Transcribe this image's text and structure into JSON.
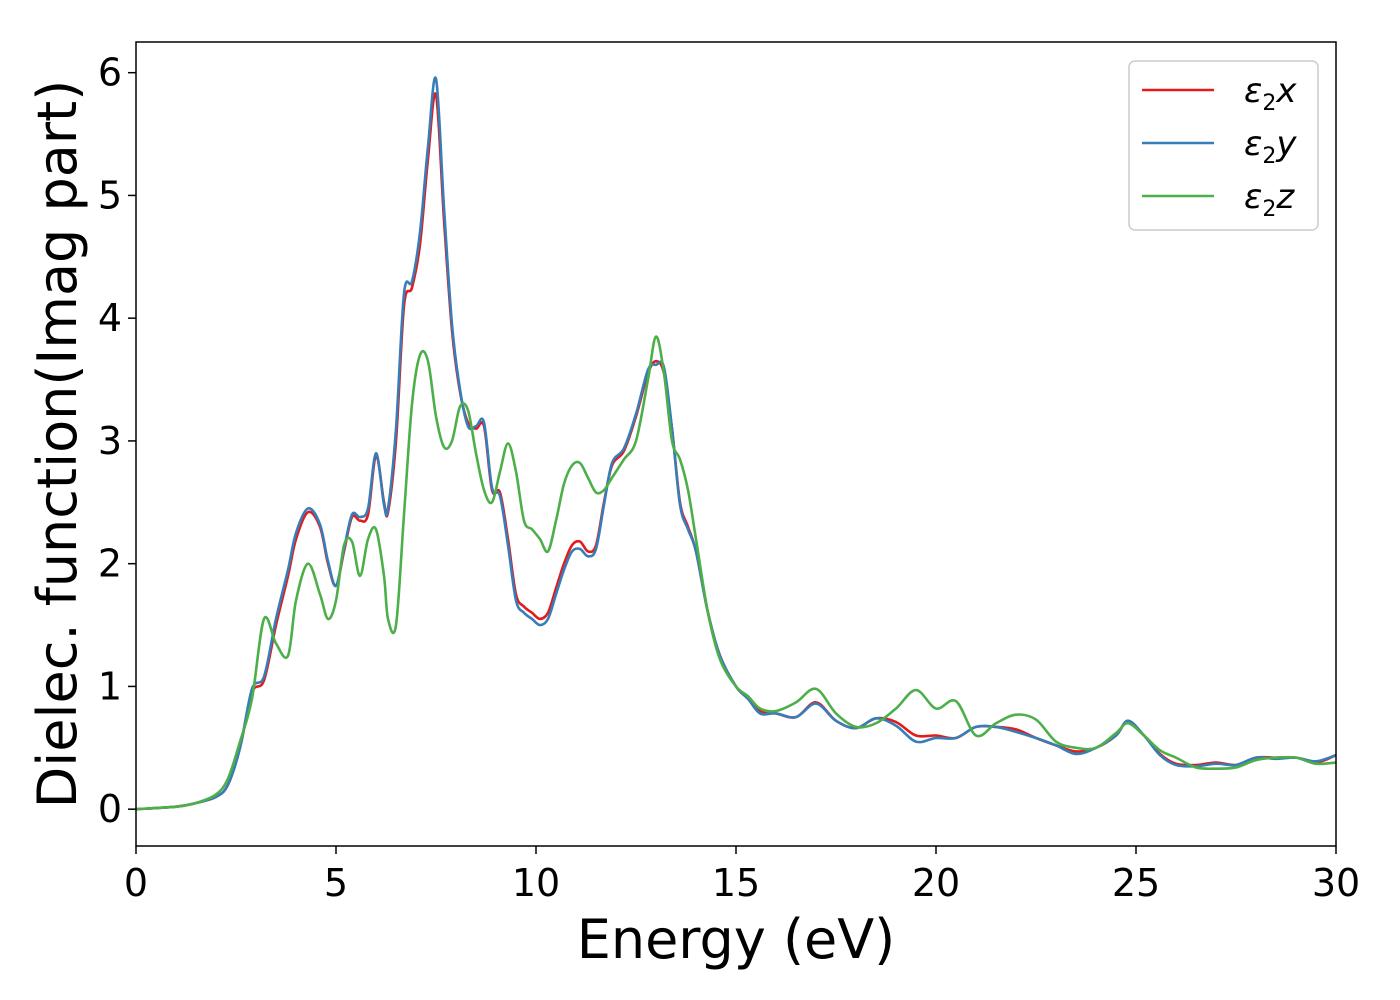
{
  "chart_data": {
    "type": "line",
    "title": "",
    "xlabel": "Energy (eV)",
    "ylabel": "Dielec. function(Imag part)",
    "xlim": [
      0,
      30
    ],
    "ylim": [
      -0.3,
      6.25
    ],
    "xticks": [
      0,
      5,
      10,
      15,
      20,
      25,
      30
    ],
    "yticks": [
      0,
      1,
      2,
      3,
      4,
      5,
      6
    ],
    "grid": false,
    "legend_position": "top-right",
    "series": [
      {
        "name": "ε₂x",
        "legend_main": "ε",
        "legend_sub": "2",
        "legend_axis": "x",
        "color": "#e41a1c",
        "x": [
          0,
          1,
          1.5,
          2,
          2.3,
          2.6,
          2.9,
          3.2,
          3.5,
          3.8,
          4.0,
          4.3,
          4.6,
          4.8,
          5.0,
          5.2,
          5.4,
          5.6,
          5.8,
          6.0,
          6.2,
          6.3,
          6.5,
          6.7,
          6.9,
          7.1,
          7.3,
          7.5,
          7.7,
          7.9,
          8.1,
          8.3,
          8.5,
          8.7,
          8.9,
          9.1,
          9.3,
          9.5,
          9.7,
          9.9,
          10.1,
          10.3,
          10.5,
          10.7,
          10.9,
          11.1,
          11.3,
          11.5,
          11.7,
          11.9,
          12.2,
          12.5,
          12.8,
          13.0,
          13.2,
          13.4,
          13.6,
          13.8,
          14.0,
          14.3,
          14.6,
          15.0,
          15.3,
          15.6,
          16.0,
          16.5,
          17.0,
          17.5,
          18.0,
          18.5,
          19.0,
          19.5,
          20.0,
          20.5,
          21.0,
          21.5,
          22.0,
          22.5,
          23.0,
          23.5,
          24.0,
          24.5,
          24.8,
          25.2,
          25.6,
          26.0,
          26.5,
          27.0,
          27.5,
          28.0,
          28.5,
          29.0,
          29.5,
          30.0
        ],
        "y": [
          0,
          0.02,
          0.05,
          0.1,
          0.2,
          0.5,
          0.95,
          1.05,
          1.5,
          1.9,
          2.2,
          2.42,
          2.3,
          2.0,
          1.82,
          2.1,
          2.38,
          2.35,
          2.4,
          2.88,
          2.5,
          2.42,
          3.0,
          4.1,
          4.25,
          4.6,
          5.3,
          5.82,
          4.8,
          3.9,
          3.4,
          3.15,
          3.1,
          3.12,
          2.6,
          2.58,
          2.2,
          1.75,
          1.65,
          1.6,
          1.55,
          1.6,
          1.8,
          2.0,
          2.15,
          2.18,
          2.1,
          2.15,
          2.5,
          2.8,
          2.92,
          3.2,
          3.55,
          3.65,
          3.55,
          3.1,
          2.5,
          2.3,
          2.1,
          1.6,
          1.25,
          1.0,
          0.9,
          0.8,
          0.78,
          0.75,
          0.87,
          0.72,
          0.66,
          0.74,
          0.71,
          0.6,
          0.6,
          0.58,
          0.67,
          0.67,
          0.65,
          0.58,
          0.52,
          0.47,
          0.5,
          0.6,
          0.72,
          0.6,
          0.45,
          0.37,
          0.36,
          0.38,
          0.36,
          0.42,
          0.42,
          0.42,
          0.38,
          0.44
        ]
      },
      {
        "name": "ε₂y",
        "legend_main": "ε",
        "legend_sub": "2",
        "legend_axis": "y",
        "color": "#377eb8",
        "x": [
          0,
          1,
          1.5,
          2,
          2.3,
          2.6,
          2.9,
          3.2,
          3.5,
          3.8,
          4.0,
          4.3,
          4.6,
          4.8,
          5.0,
          5.2,
          5.4,
          5.6,
          5.8,
          6.0,
          6.2,
          6.3,
          6.5,
          6.7,
          6.9,
          7.1,
          7.3,
          7.5,
          7.7,
          7.9,
          8.1,
          8.3,
          8.5,
          8.7,
          8.9,
          9.1,
          9.3,
          9.5,
          9.7,
          9.9,
          10.1,
          10.3,
          10.5,
          10.7,
          10.9,
          11.1,
          11.3,
          11.5,
          11.7,
          11.9,
          12.2,
          12.5,
          12.8,
          13.0,
          13.2,
          13.4,
          13.6,
          13.8,
          14.0,
          14.3,
          14.6,
          15.0,
          15.3,
          15.6,
          16.0,
          16.5,
          17.0,
          17.5,
          18.0,
          18.5,
          19.0,
          19.5,
          20.0,
          20.5,
          21.0,
          21.5,
          22.0,
          22.5,
          23.0,
          23.5,
          24.0,
          24.5,
          24.8,
          25.2,
          25.6,
          26.0,
          26.5,
          27.0,
          27.5,
          28.0,
          28.5,
          29.0,
          29.5,
          30.0
        ],
        "y": [
          0,
          0.02,
          0.05,
          0.1,
          0.2,
          0.5,
          0.98,
          1.08,
          1.55,
          1.95,
          2.25,
          2.45,
          2.32,
          2.02,
          1.82,
          2.12,
          2.4,
          2.38,
          2.45,
          2.9,
          2.48,
          2.45,
          3.1,
          4.2,
          4.3,
          4.7,
          5.4,
          5.95,
          4.9,
          3.95,
          3.42,
          3.12,
          3.12,
          3.15,
          2.62,
          2.55,
          2.15,
          1.7,
          1.6,
          1.55,
          1.5,
          1.55,
          1.75,
          1.95,
          2.1,
          2.12,
          2.06,
          2.12,
          2.48,
          2.82,
          2.94,
          3.22,
          3.58,
          3.62,
          3.6,
          3.1,
          2.48,
          2.28,
          2.1,
          1.6,
          1.25,
          1.0,
          0.9,
          0.78,
          0.78,
          0.75,
          0.86,
          0.72,
          0.66,
          0.74,
          0.68,
          0.55,
          0.58,
          0.58,
          0.67,
          0.67,
          0.63,
          0.58,
          0.52,
          0.45,
          0.5,
          0.6,
          0.72,
          0.6,
          0.44,
          0.36,
          0.35,
          0.37,
          0.36,
          0.42,
          0.41,
          0.42,
          0.39,
          0.44
        ]
      },
      {
        "name": "ε₂z",
        "legend_main": "ε",
        "legend_sub": "2",
        "legend_axis": "z",
        "color": "#4daf4a",
        "x": [
          0,
          1,
          1.5,
          2,
          2.3,
          2.6,
          2.9,
          3.2,
          3.5,
          3.8,
          4.0,
          4.3,
          4.6,
          4.8,
          5.0,
          5.2,
          5.4,
          5.6,
          5.8,
          6.0,
          6.2,
          6.3,
          6.5,
          6.7,
          6.9,
          7.1,
          7.3,
          7.5,
          7.7,
          7.9,
          8.1,
          8.3,
          8.5,
          8.7,
          8.9,
          9.1,
          9.3,
          9.5,
          9.7,
          9.9,
          10.1,
          10.3,
          10.5,
          10.7,
          10.9,
          11.1,
          11.3,
          11.5,
          11.7,
          11.9,
          12.2,
          12.5,
          12.8,
          13.0,
          13.2,
          13.4,
          13.6,
          13.8,
          14.0,
          14.3,
          14.6,
          15.0,
          15.3,
          15.6,
          16.0,
          16.5,
          17.0,
          17.5,
          18.0,
          18.5,
          19.0,
          19.5,
          20.0,
          20.5,
          21.0,
          21.5,
          22.0,
          22.5,
          23.0,
          23.5,
          24.0,
          24.5,
          24.8,
          25.2,
          25.6,
          26.0,
          26.5,
          27.0,
          27.5,
          28.0,
          28.5,
          29.0,
          29.5,
          30.0
        ],
        "y": [
          0,
          0.02,
          0.05,
          0.12,
          0.25,
          0.55,
          0.9,
          1.55,
          1.35,
          1.25,
          1.7,
          2.0,
          1.75,
          1.55,
          1.7,
          2.15,
          2.18,
          1.9,
          2.2,
          2.28,
          1.9,
          1.55,
          1.5,
          2.4,
          3.3,
          3.7,
          3.65,
          3.2,
          2.95,
          3.0,
          3.28,
          3.25,
          2.9,
          2.6,
          2.5,
          2.75,
          2.98,
          2.75,
          2.35,
          2.28,
          2.2,
          2.1,
          2.35,
          2.65,
          2.8,
          2.82,
          2.7,
          2.58,
          2.6,
          2.7,
          2.85,
          3.0,
          3.5,
          3.85,
          3.55,
          3.0,
          2.85,
          2.6,
          2.2,
          1.6,
          1.22,
          1.0,
          0.92,
          0.82,
          0.8,
          0.87,
          0.98,
          0.78,
          0.67,
          0.7,
          0.82,
          0.97,
          0.82,
          0.88,
          0.6,
          0.7,
          0.77,
          0.73,
          0.55,
          0.5,
          0.5,
          0.62,
          0.7,
          0.6,
          0.48,
          0.42,
          0.34,
          0.33,
          0.34,
          0.4,
          0.42,
          0.42,
          0.37,
          0.38
        ]
      }
    ]
  }
}
